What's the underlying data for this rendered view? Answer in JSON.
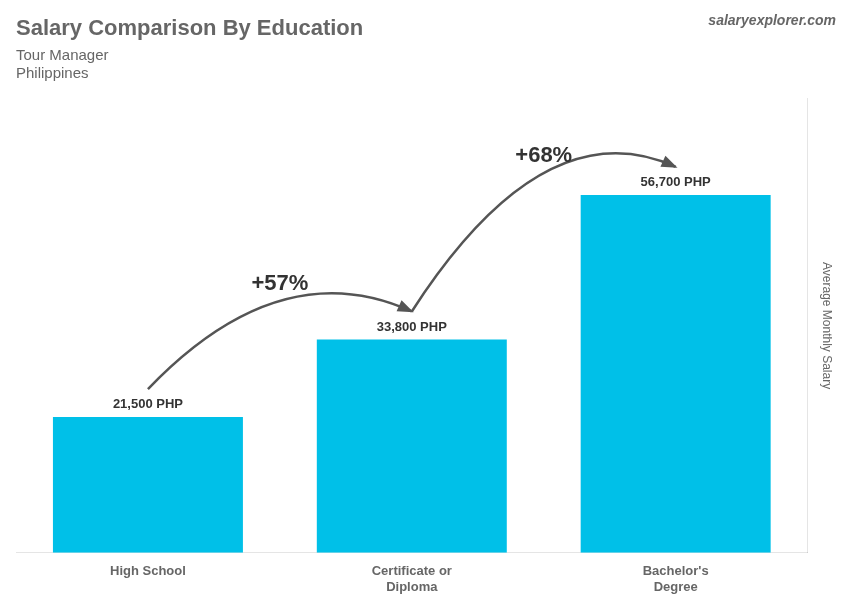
{
  "chart_data": {
    "type": "bar",
    "title": "Salary Comparison By Education",
    "subtitle": "Tour Manager",
    "country": "Philippines",
    "source": "salaryexplorer.com",
    "ylabel": "Average Monthly Salary",
    "categories": [
      "High School",
      "Certificate or\nDiploma",
      "Bachelor's\nDegree"
    ],
    "values": [
      21500,
      33800,
      56700
    ],
    "value_labels": [
      "21,500 PHP",
      "33,800 PHP",
      "56,700 PHP"
    ],
    "annotations": [
      "+57%",
      "+68%"
    ],
    "color": "#00c0e8",
    "ylim": [
      0,
      72000
    ],
    "grid": false,
    "tick_labels": "x",
    "data_labels": true
  }
}
